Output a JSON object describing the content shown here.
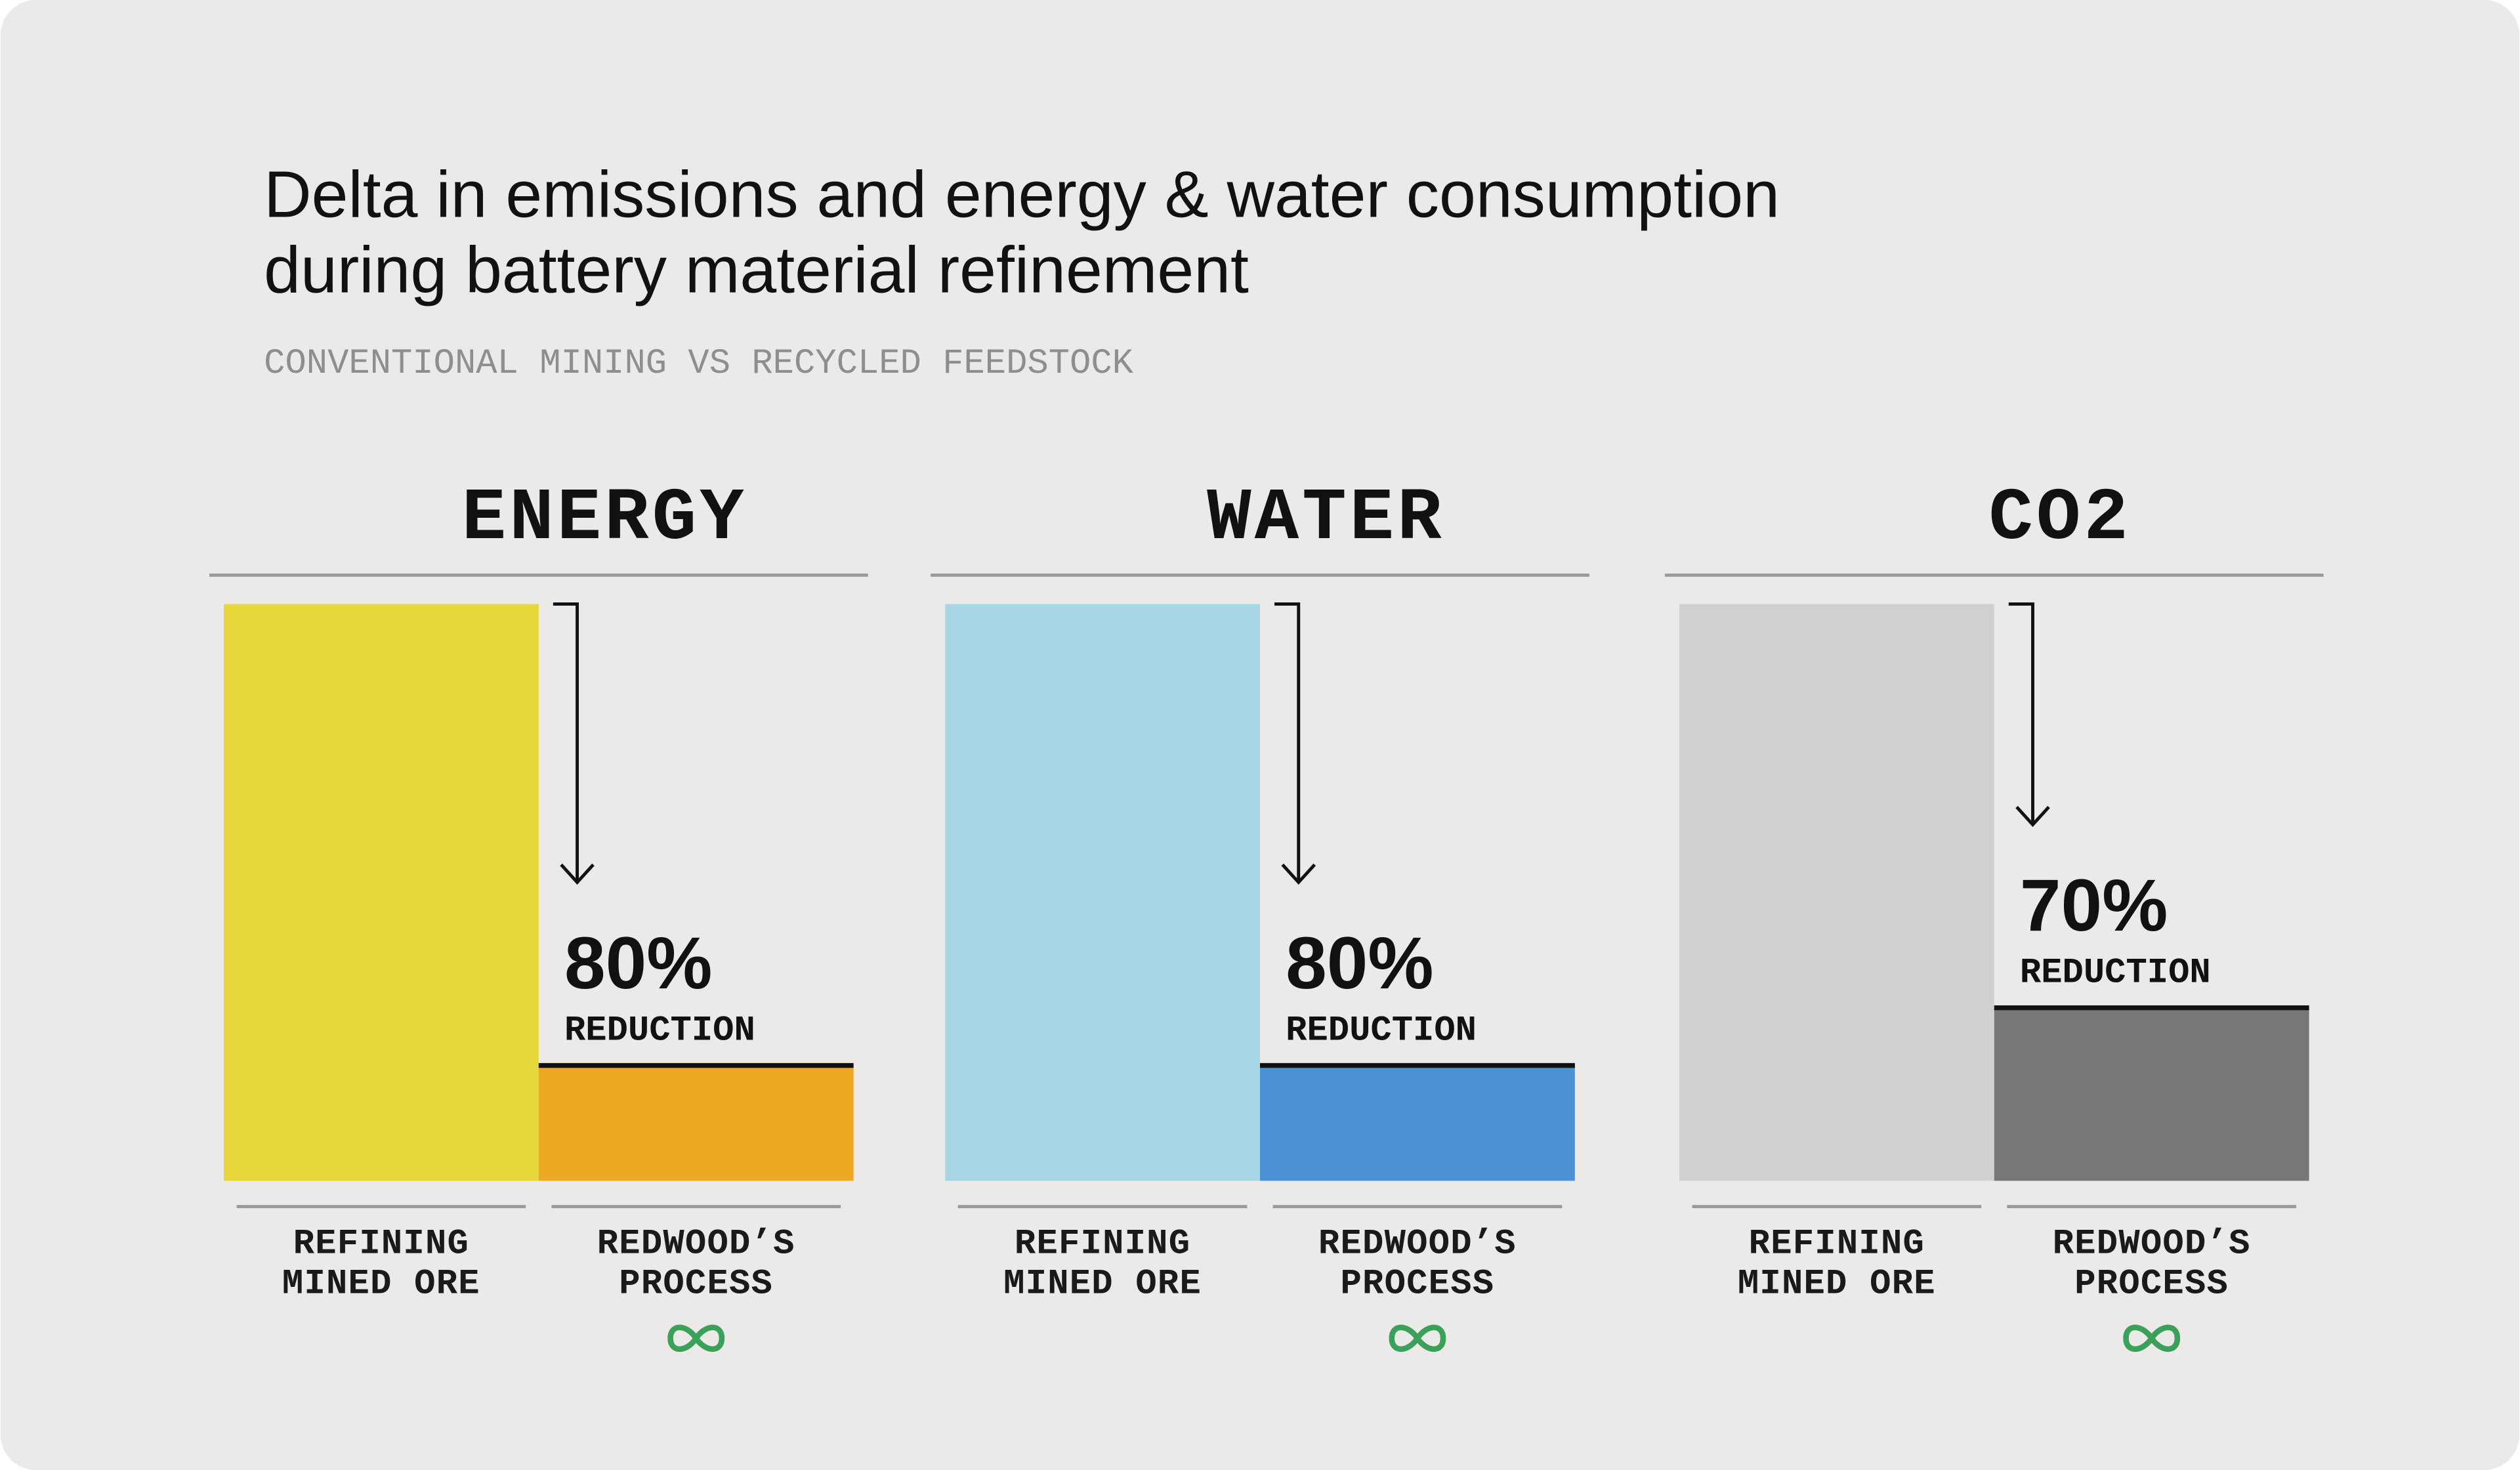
{
  "title": "Delta in emissions and energy & water consumption during battery material refinement",
  "subtitle": "CONVENTIONAL MINING VS RECYCLED FEEDSTOCK",
  "chart_data": [
    {
      "type": "bar",
      "title": "ENERGY",
      "categories": [
        "REFINING MINED ORE",
        "REDWOOD’S PROCESS"
      ],
      "values": [
        100,
        20
      ],
      "colors": [
        "#e6d83b",
        "#eca823"
      ],
      "annotation": {
        "value": 80,
        "label": "80%",
        "text": "REDUCTION"
      }
    },
    {
      "type": "bar",
      "title": "WATER",
      "categories": [
        "REFINING MINED ORE",
        "REDWOOD’S PROCESS"
      ],
      "values": [
        100,
        20
      ],
      "colors": [
        "#a8d6e4",
        "#4a91d5"
      ],
      "annotation": {
        "value": 80,
        "label": "80%",
        "text": "REDUCTION"
      }
    },
    {
      "type": "bar",
      "title": "CO2",
      "categories": [
        "REFINING MINED ORE",
        "REDWOOD’S PROCESS"
      ],
      "values": [
        100,
        30
      ],
      "colors": [
        "#d0d0d0",
        "#777777"
      ],
      "annotation": {
        "value": 70,
        "label": "70%",
        "text": "REDUCTION"
      }
    }
  ]
}
